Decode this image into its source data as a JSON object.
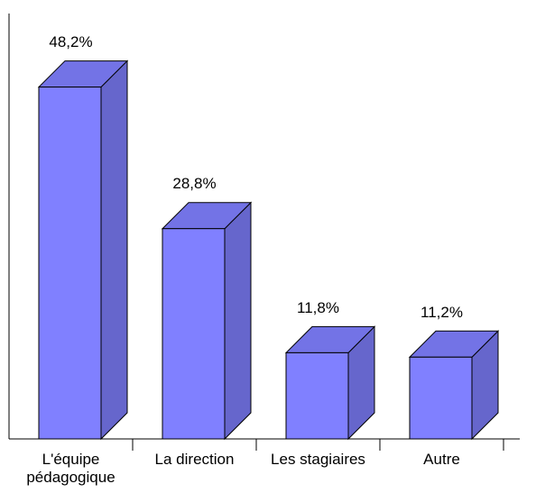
{
  "chart_data": {
    "type": "bar3d",
    "categories": [
      "L'équipe pédagogique",
      "La direction",
      "Les stagiaires",
      "Autre"
    ],
    "values": [
      48.2,
      28.8,
      11.8,
      11.2
    ],
    "value_labels": [
      "48,2%",
      "28,8%",
      "11,8%",
      "11,2%"
    ],
    "color": "#8080ff"
  }
}
